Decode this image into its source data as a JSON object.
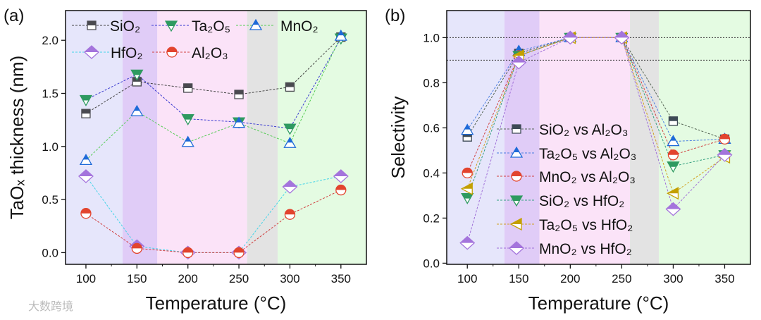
{
  "watermark": "大数跨境",
  "chart_data": [
    {
      "type": "line",
      "panel_label": "(a)",
      "xlabel": "Temperature (°C)",
      "ylabel": "TaOₓ thickness (nm)",
      "x": [
        100,
        150,
        200,
        250,
        300,
        350
      ],
      "xticks": [
        "100",
        "150",
        "200",
        "250",
        "300",
        "350"
      ],
      "yticks": [
        "0.0",
        "0.5",
        "1.0",
        "1.5",
        "2.0"
      ],
      "xlim": [
        80,
        375
      ],
      "ylim": [
        -0.11,
        2.28
      ],
      "bands": [
        {
          "from": 80,
          "to": 136,
          "color": "#e6e6fb"
        },
        {
          "from": 136,
          "to": 170,
          "color": "#e0ccf7"
        },
        {
          "from": 170,
          "to": 258,
          "color": "#fbe3f8"
        },
        {
          "from": 258,
          "to": 288,
          "color": "#e3e3e3"
        },
        {
          "from": 288,
          "to": 375,
          "color": "#e4fbe2"
        }
      ],
      "series": [
        {
          "name": "SiO₂",
          "marker": "square",
          "color": "#4a4a50",
          "line": "#444444",
          "values": [
            1.31,
            1.61,
            1.55,
            1.49,
            1.56,
            2.03
          ]
        },
        {
          "name": "Ta₂O₅",
          "marker": "tri-down",
          "color": "#2e9a60",
          "line": "#3a3ad0",
          "values": [
            1.44,
            1.68,
            1.26,
            1.23,
            1.17,
            2.02
          ]
        },
        {
          "name": "MnO₂",
          "marker": "tri-up",
          "color": "#1e6ad8",
          "line": "#55cc55",
          "values": [
            0.87,
            1.33,
            1.04,
            1.22,
            1.03,
            2.04
          ]
        },
        {
          "name": "HfO₂",
          "marker": "diamond",
          "color": "#a474dc",
          "line": "#44d4e8",
          "values": [
            0.72,
            0.06,
            0.0,
            0.0,
            0.62,
            0.72
          ]
        },
        {
          "name": "Al₂O₃",
          "marker": "circle",
          "color": "#e2442e",
          "line": "#d04040",
          "values": [
            0.37,
            0.04,
            0.0,
            0.0,
            0.36,
            0.59
          ]
        }
      ]
    },
    {
      "type": "line",
      "panel_label": "(b)",
      "xlabel": "Temperature (°C)",
      "ylabel": "Selectivity",
      "x": [
        100,
        150,
        200,
        250,
        300,
        350
      ],
      "xticks": [
        "100",
        "150",
        "200",
        "250",
        "300",
        "350"
      ],
      "yticks": [
        "0.0",
        "0.2",
        "0.4",
        "0.6",
        "0.8",
        "1.0"
      ],
      "xlim": [
        80,
        375
      ],
      "ylim": [
        -0.005,
        1.12
      ],
      "reference_lines": [
        1.0,
        0.9
      ],
      "bands": [
        {
          "from": 80,
          "to": 136,
          "color": "#e6e6fb"
        },
        {
          "from": 136,
          "to": 170,
          "color": "#e0ccf7"
        },
        {
          "from": 170,
          "to": 258,
          "color": "#fbe3f8"
        },
        {
          "from": 258,
          "to": 286,
          "color": "#e3e3e3"
        },
        {
          "from": 286,
          "to": 375,
          "color": "#e4fbe2"
        }
      ],
      "series": [
        {
          "name": "SiO₂ vs Al₂O₃",
          "marker": "square",
          "color": "#3e4a56",
          "line": "#556655",
          "values": [
            0.56,
            0.93,
            1.0,
            1.0,
            0.63,
            0.55
          ]
        },
        {
          "name": "Ta₂O₅ vs Al₂O₃",
          "marker": "tri-up",
          "color": "#1e6ad8",
          "line": "#4a7ee0",
          "values": [
            0.59,
            0.94,
            1.0,
            1.0,
            0.54,
            0.55
          ]
        },
        {
          "name": "MnO₂ vs Al₂O₃",
          "marker": "circle",
          "color": "#e2442e",
          "line": "#d04040",
          "values": [
            0.4,
            0.92,
            1.0,
            1.0,
            0.48,
            0.55
          ]
        },
        {
          "name": "SiO₂ vs HfO₂",
          "marker": "tri-down",
          "color": "#2e9a60",
          "line": "#33a080",
          "values": [
            0.29,
            0.92,
            1.0,
            1.0,
            0.43,
            0.48
          ]
        },
        {
          "name": "Ta₂O₅ vs HfO₂",
          "marker": "tri-left",
          "color": "#c4a000",
          "line": "#d0a020",
          "values": [
            0.33,
            0.92,
            1.0,
            1.0,
            0.31,
            0.47
          ]
        },
        {
          "name": "MnO₂ vs HfO₂",
          "marker": "diamond",
          "color": "#a474dc",
          "line": "#a070d8",
          "values": [
            0.09,
            0.89,
            1.0,
            1.0,
            0.24,
            0.48
          ]
        }
      ]
    }
  ]
}
